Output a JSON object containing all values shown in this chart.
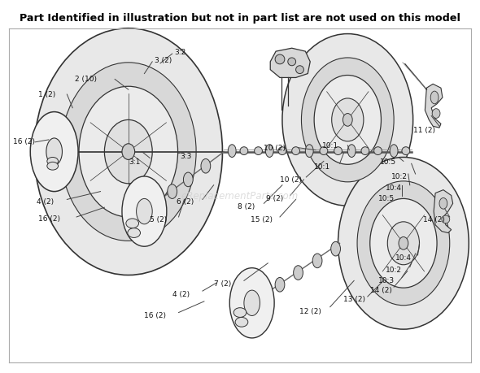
{
  "title": "Part Identified in illustration but not in part list are not used on this model",
  "title_fontsize": 9.2,
  "bg_color": "#ffffff",
  "fig_width": 5.9,
  "fig_height": 4.6,
  "watermark": "eReplacementParts.com",
  "line_color": "#333333",
  "line_lw": 0.9,
  "label_fontsize": 6.5,
  "leader_lw": 0.7,
  "leader_color": "#444444"
}
